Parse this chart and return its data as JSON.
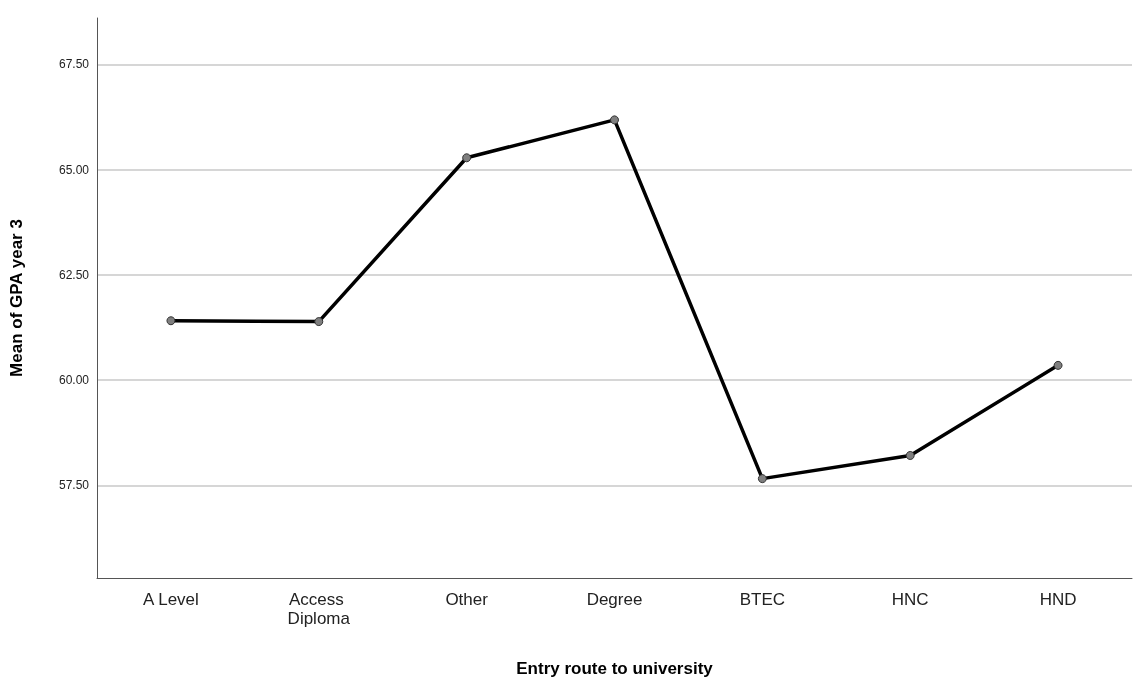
{
  "chart_data": {
    "type": "line",
    "xlabel": "Entry route to university",
    "ylabel": "Mean of GPA year 3",
    "categories": [
      "A Level",
      "Access Diploma",
      "Other",
      "Degree",
      "BTEC",
      "HNC",
      "HND"
    ],
    "series": [
      {
        "color": "#000000",
        "values": [
          61.41,
          61.39,
          65.28,
          66.18,
          57.66,
          58.21,
          60.35
        ]
      }
    ],
    "ylim": [
      55.3,
      68.6
    ],
    "yticks": [
      {
        "value": 57.5,
        "label": "57.50"
      },
      {
        "value": 60,
        "label": "60.00"
      },
      {
        "value": 62.5,
        "label": "62.50"
      },
      {
        "value": 65,
        "label": "65.00"
      },
      {
        "value": 67.5,
        "label": "67.50"
      }
    ],
    "grid": "y",
    "marker": "circle",
    "line_style": "solid"
  }
}
